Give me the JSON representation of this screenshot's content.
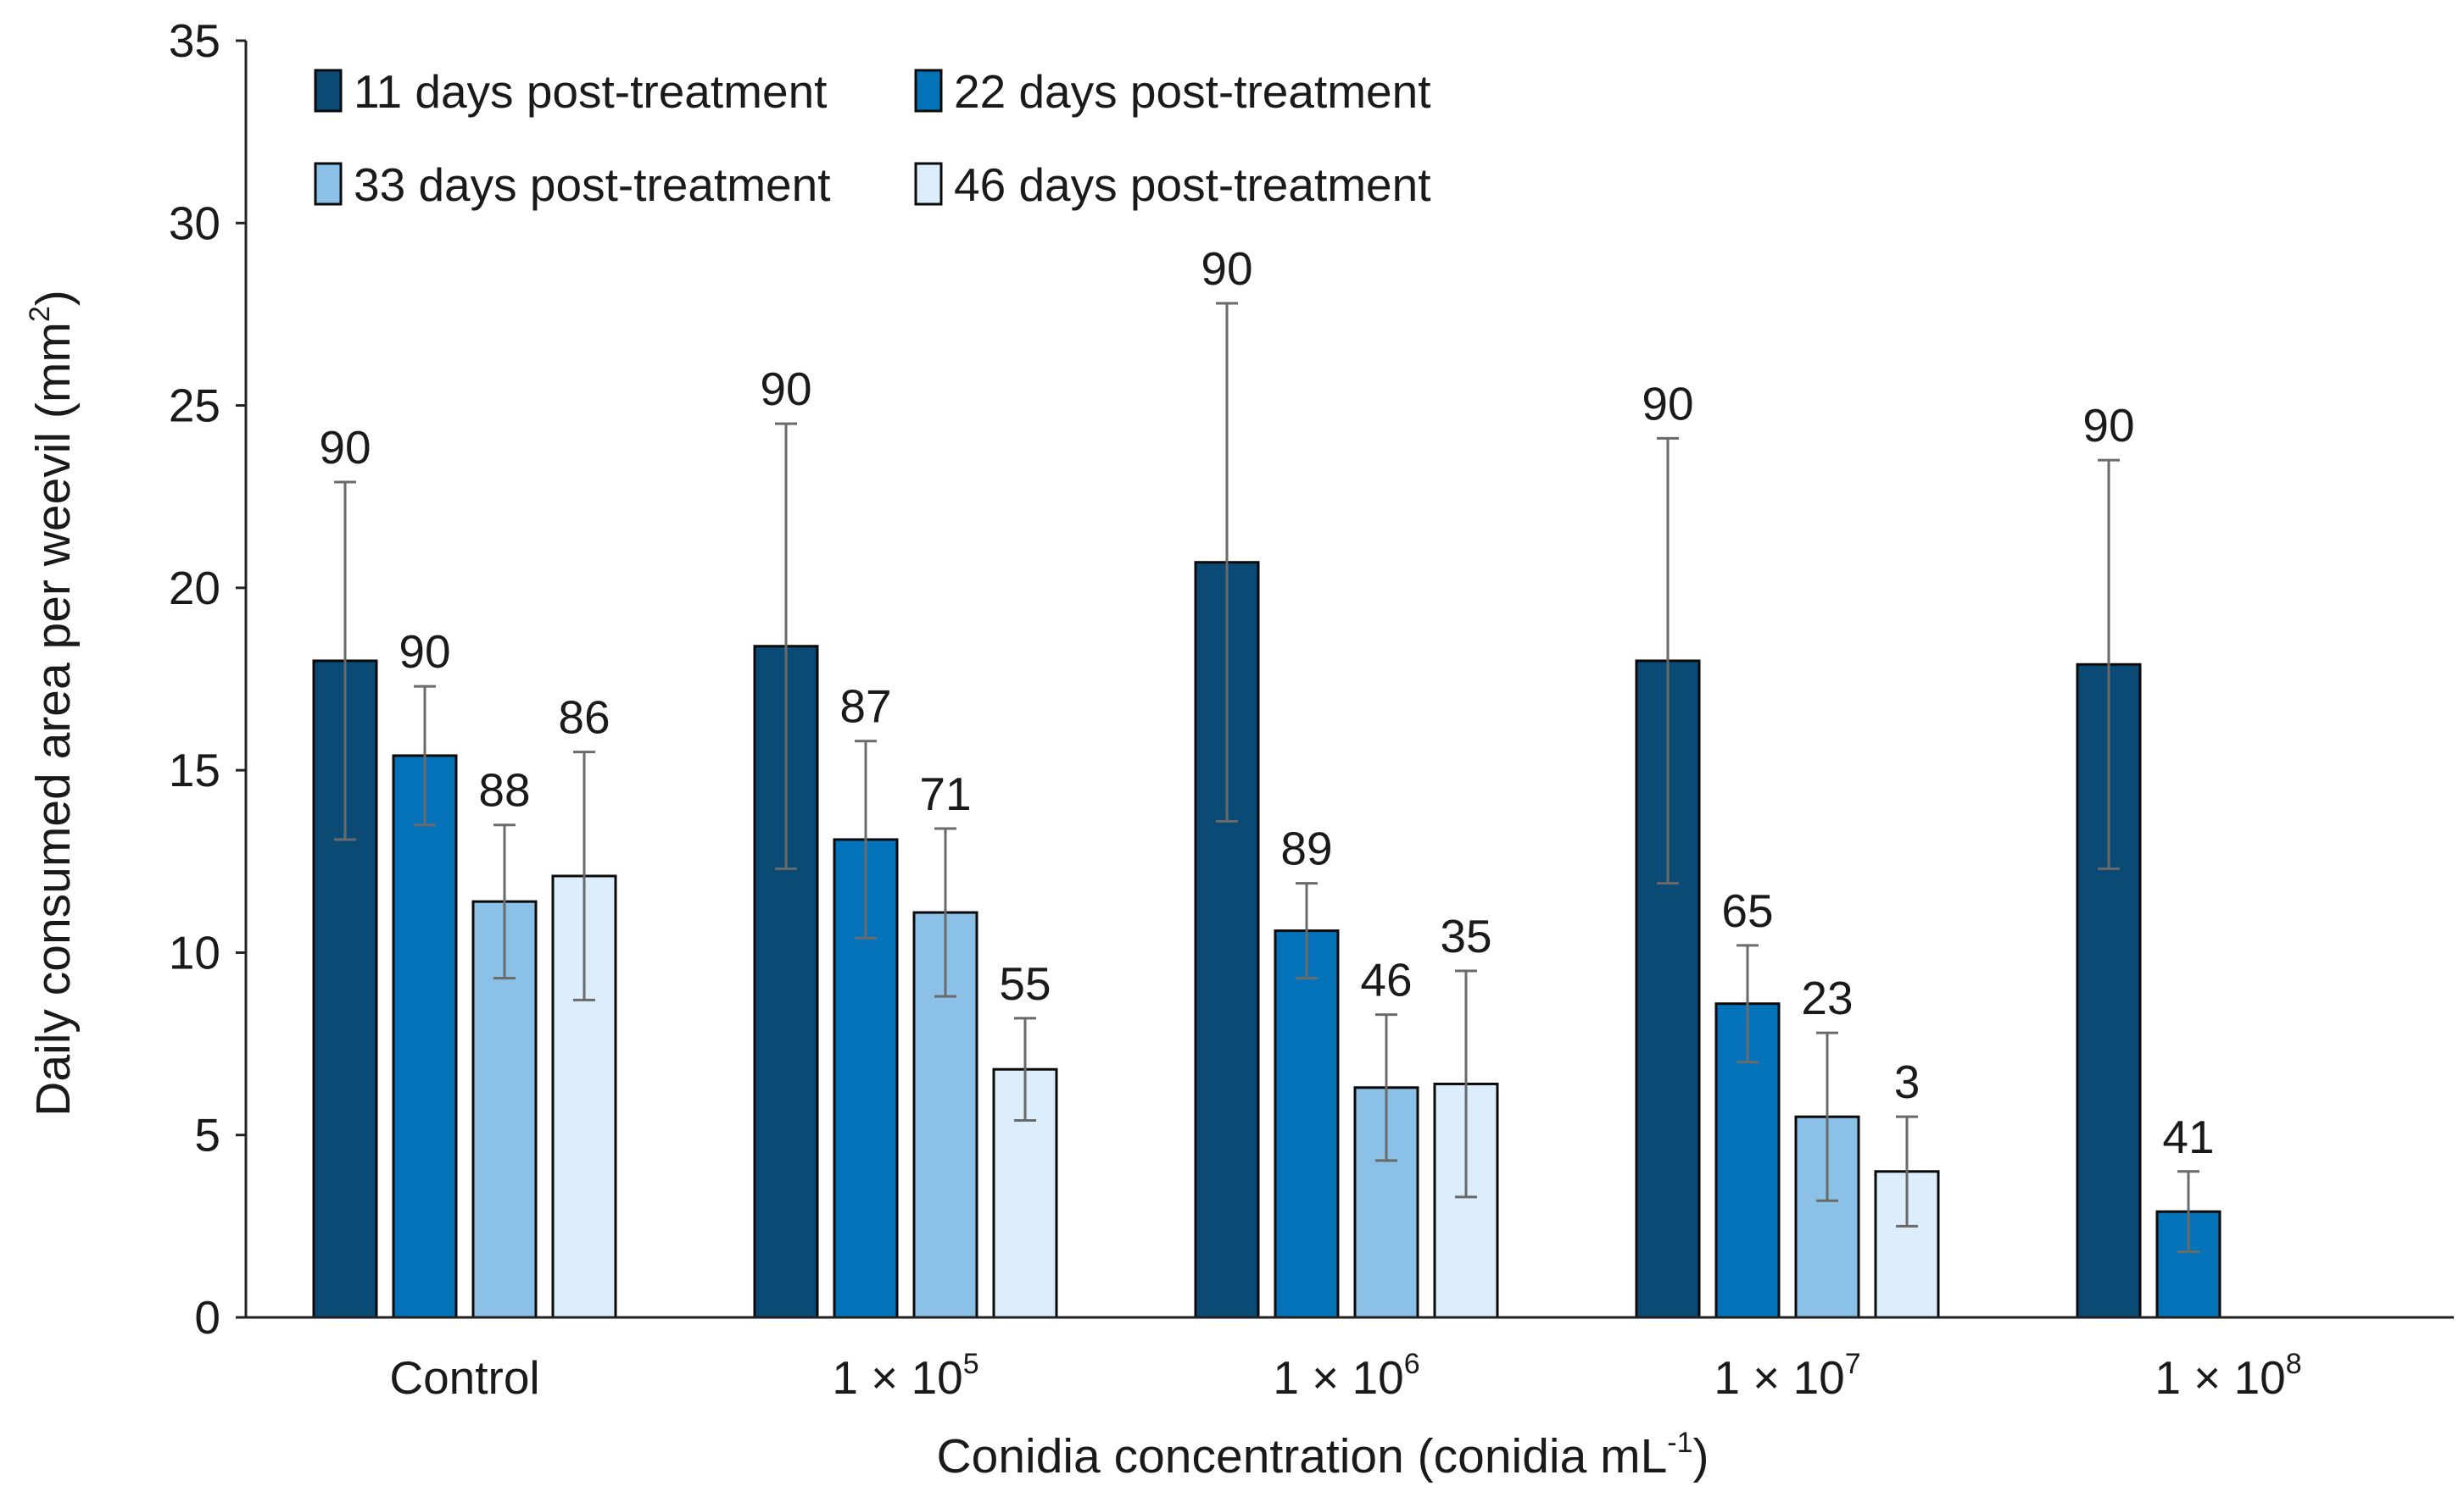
{
  "chart_data": {
    "type": "bar",
    "title": "",
    "xlabel": "Conidia concentration (conidia mL",
    "xlabel_sup": "-1",
    "xlabel_end": ")",
    "ylabel": "Daily consumed area per weevil (mm",
    "ylabel_sup": "2",
    "ylabel_end": ")",
    "ylim": [
      0,
      35
    ],
    "yticks": [
      0,
      5,
      10,
      15,
      20,
      25,
      30,
      35
    ],
    "categories": [
      {
        "base": "Control",
        "exp": ""
      },
      {
        "base": "1 × 10",
        "exp": "5"
      },
      {
        "base": "1 × 10",
        "exp": "6"
      },
      {
        "base": "1 × 10",
        "exp": "7"
      },
      {
        "base": "1 × 10",
        "exp": "8"
      }
    ],
    "legend_position": "top-left",
    "series": [
      {
        "name": "11 days post-treatment",
        "color": "#0b4a74",
        "values": [
          18.0,
          18.4,
          20.7,
          18.0,
          17.9
        ],
        "errors": [
          4.9,
          6.1,
          7.1,
          6.1,
          5.6
        ],
        "labels": [
          "90",
          "90",
          "90",
          "90",
          "90"
        ]
      },
      {
        "name": "22 days post-treatment",
        "color": "#0573b9",
        "values": [
          15.4,
          13.1,
          10.6,
          8.6,
          2.9
        ],
        "errors": [
          1.9,
          2.7,
          1.3,
          1.6,
          1.1
        ],
        "labels": [
          "90",
          "87",
          "89",
          "65",
          "41"
        ]
      },
      {
        "name": "33 days post-treatment",
        "color": "#8bc1e7",
        "values": [
          11.4,
          11.1,
          6.3,
          5.5,
          null
        ],
        "errors": [
          2.1,
          2.3,
          2.0,
          2.3,
          null
        ],
        "labels": [
          "88",
          "71",
          "46",
          "23",
          ""
        ]
      },
      {
        "name": "46 days post-treatment",
        "color": "#dceefb",
        "values": [
          12.1,
          6.8,
          6.4,
          4.0,
          null
        ],
        "errors": [
          3.4,
          1.4,
          3.1,
          1.5,
          null
        ],
        "labels": [
          "86",
          "55",
          "35",
          "3",
          ""
        ]
      }
    ]
  }
}
